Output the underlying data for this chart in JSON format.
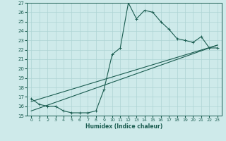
{
  "xlabel": "Humidex (Indice chaleur)",
  "ylabel": "",
  "bg_color": "#ceeaea",
  "line_color": "#1a5c50",
  "grid_color": "#aed4d4",
  "xlim": [
    -0.5,
    23.5
  ],
  "ylim": [
    15,
    27
  ],
  "xticks": [
    0,
    1,
    2,
    3,
    4,
    5,
    6,
    7,
    8,
    9,
    10,
    11,
    12,
    13,
    14,
    15,
    16,
    17,
    18,
    19,
    20,
    21,
    22,
    23
  ],
  "yticks": [
    15,
    16,
    17,
    18,
    19,
    20,
    21,
    22,
    23,
    24,
    25,
    26,
    27
  ],
  "series1_x": [
    0,
    1,
    2,
    3,
    4,
    5,
    6,
    7,
    8,
    9,
    10,
    11,
    12,
    13,
    14,
    15,
    16,
    17,
    18,
    19,
    20,
    21,
    22,
    23
  ],
  "series1_y": [
    16.8,
    16.2,
    16.0,
    16.0,
    15.5,
    15.3,
    15.3,
    15.3,
    15.5,
    17.8,
    21.5,
    22.2,
    27.0,
    25.3,
    26.2,
    26.0,
    25.0,
    24.2,
    23.2,
    23.0,
    22.8,
    23.4,
    22.2,
    22.2
  ],
  "series2_x": [
    0,
    23
  ],
  "series2_y": [
    16.5,
    22.5
  ],
  "series3_x": [
    0,
    23
  ],
  "series3_y": [
    15.5,
    22.5
  ]
}
